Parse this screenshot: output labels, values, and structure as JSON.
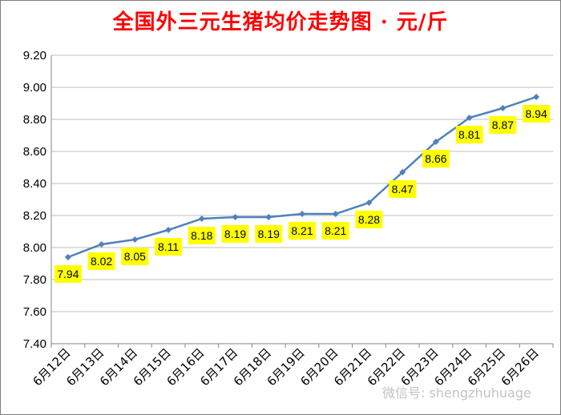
{
  "chart_data": {
    "type": "line",
    "title": "全国外三元生猪均价走势图 · 元/斤",
    "categories": [
      "6月12日",
      "6月13日",
      "6月14日",
      "6月15日",
      "6月16日",
      "6月17日",
      "6月18日",
      "6月19日",
      "6月20日",
      "6月21日",
      "6月22日",
      "6月23日",
      "6月24日",
      "6月25日",
      "6月26日"
    ],
    "series": [
      {
        "values": [
          7.94,
          8.02,
          8.05,
          8.11,
          8.18,
          8.19,
          8.19,
          8.21,
          8.21,
          8.28,
          8.47,
          8.66,
          8.81,
          8.87,
          8.94
        ]
      }
    ],
    "data_labels": [
      "7.94",
      "8.02",
      "8.05",
      "8.11",
      "8.18",
      "8.19",
      "8.19",
      "8.21",
      "8.21",
      "8.28",
      "8.47",
      "8.66",
      "8.81",
      "8.87",
      "8.94"
    ],
    "ylim": [
      7.4,
      9.2
    ],
    "yticks": [
      "7.40",
      "7.60",
      "7.80",
      "8.00",
      "8.20",
      "8.40",
      "8.60",
      "8.80",
      "9.00",
      "9.20"
    ],
    "grid": true,
    "legend": "none",
    "colors": {
      "line": "#4f81bd",
      "title": "#ff0000",
      "label_bg": "#ffff00",
      "grid": "#bfbfbf"
    }
  },
  "watermark": "微信号: shengzhuhuage"
}
